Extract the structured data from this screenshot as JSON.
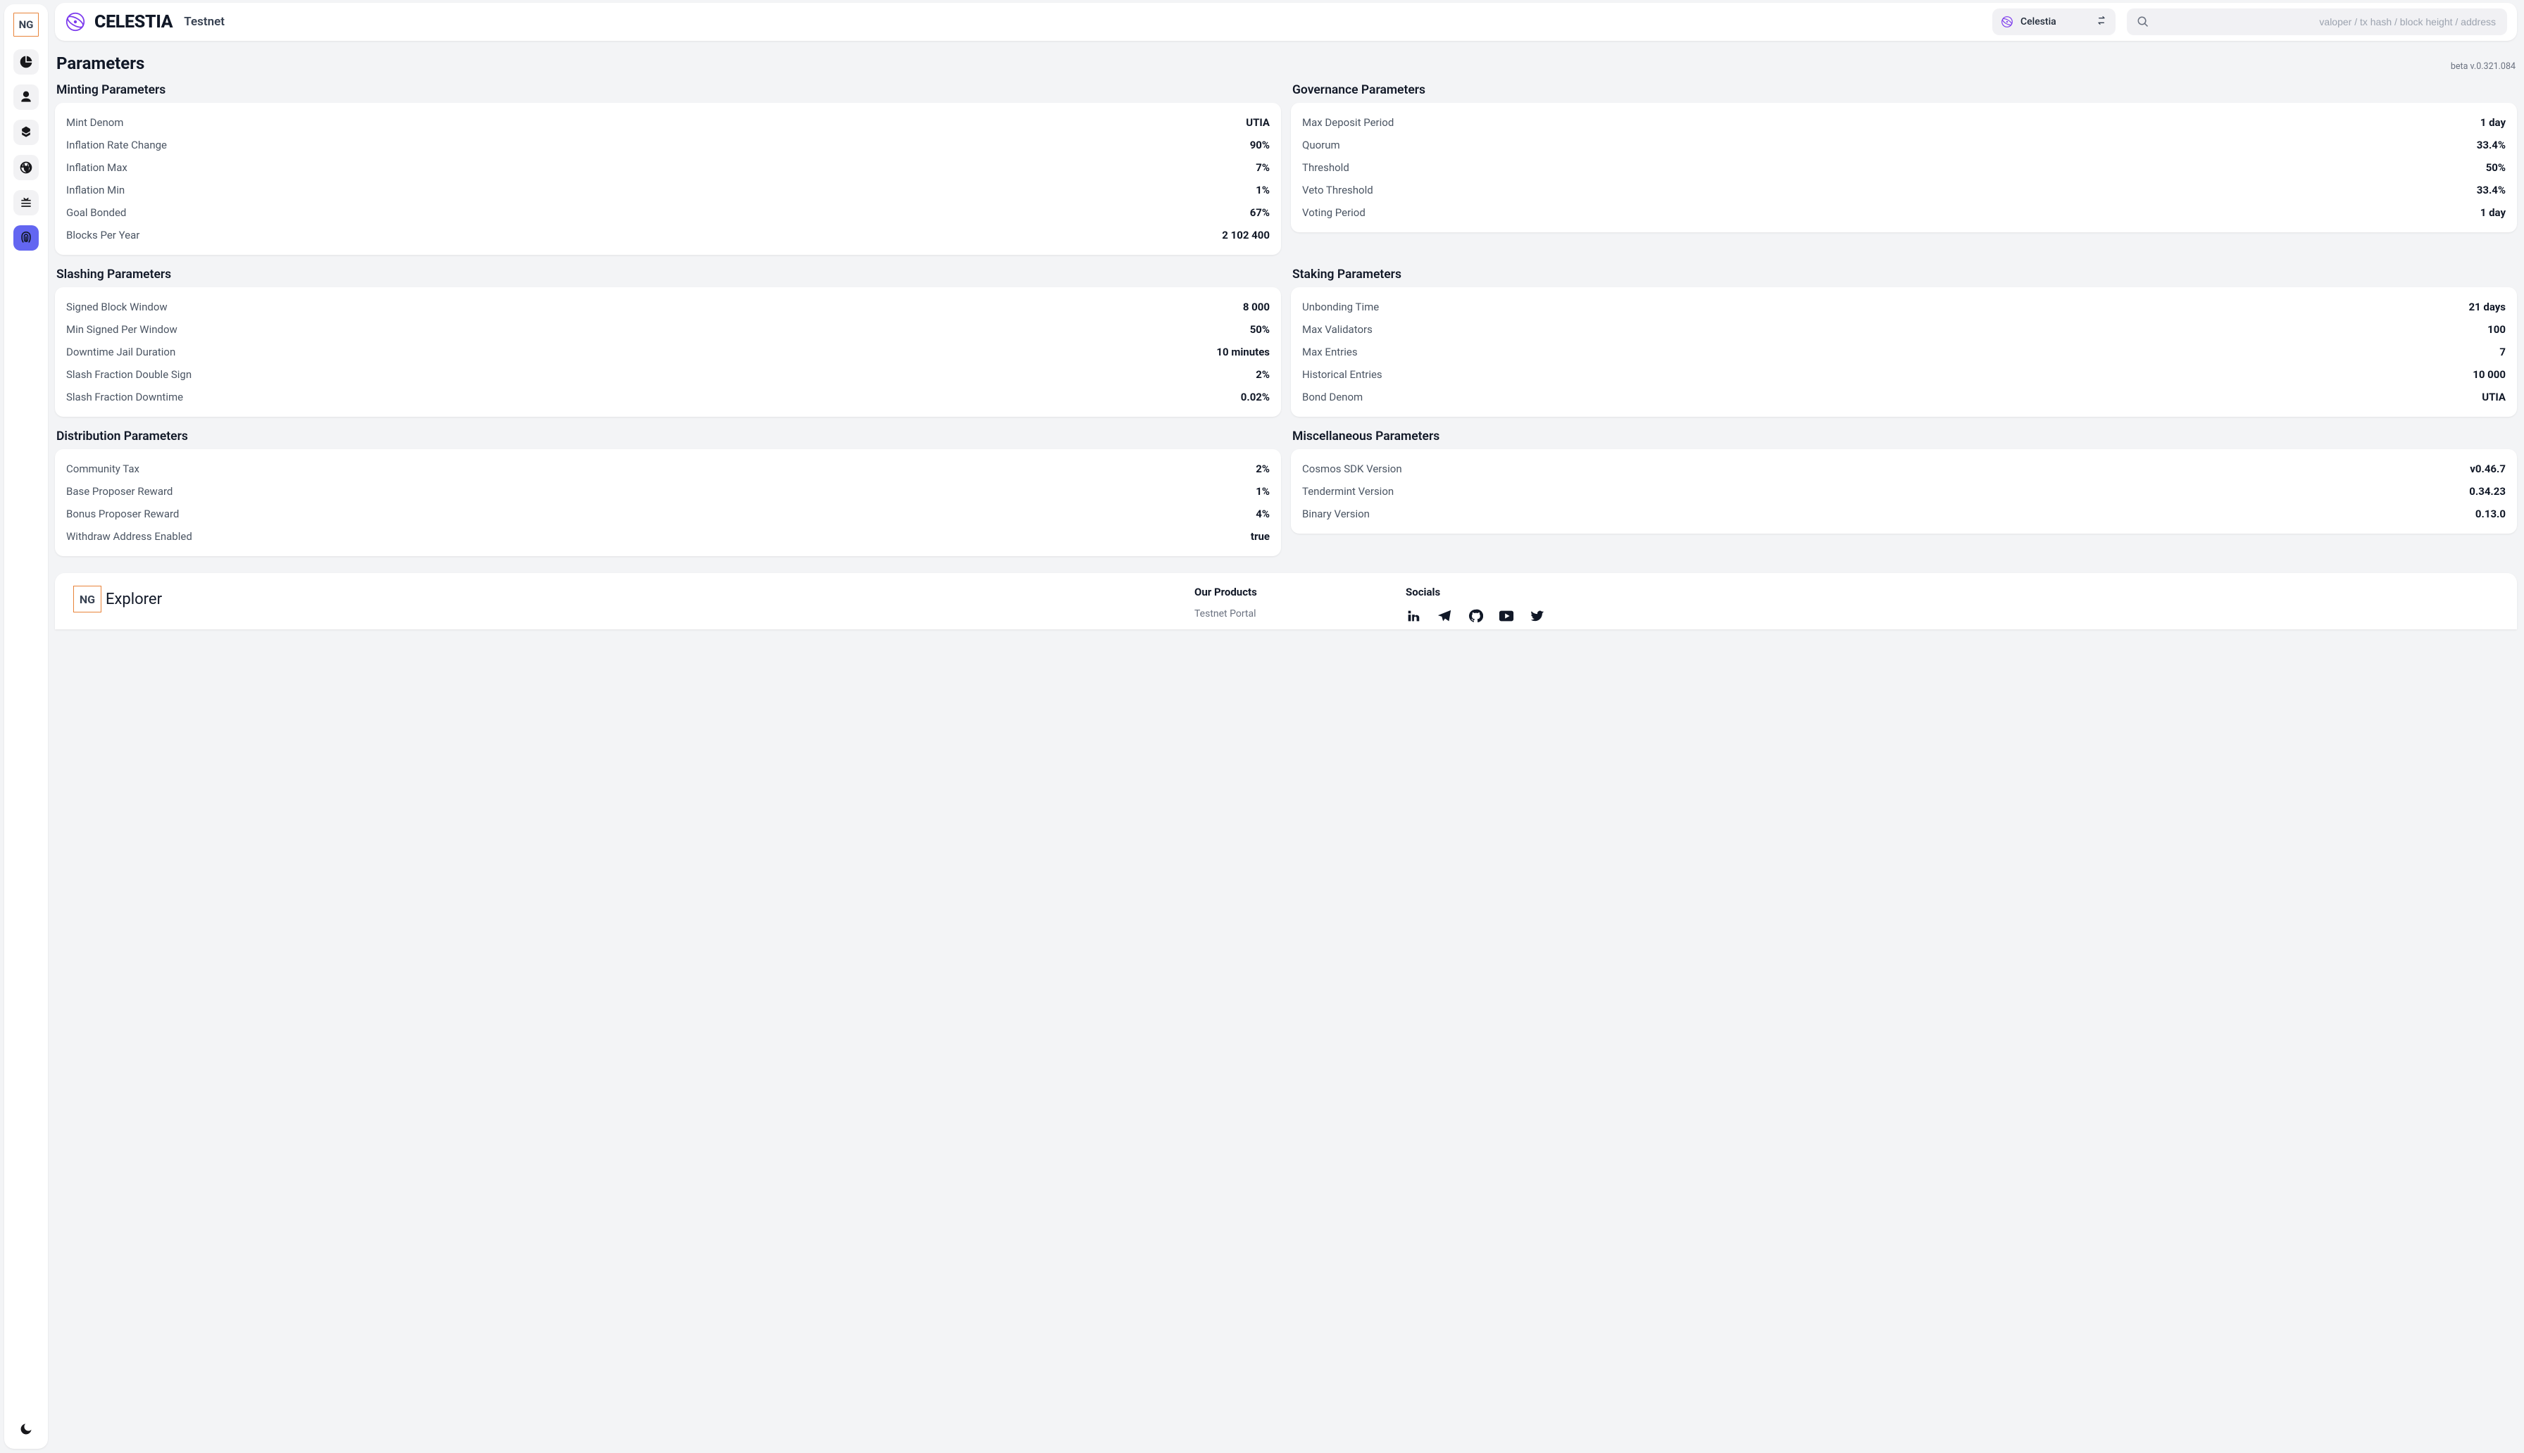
{
  "sidebar": {
    "logo_text": "NG",
    "items": [
      {
        "name": "dashboard",
        "icon": "pie"
      },
      {
        "name": "validators",
        "icon": "user"
      },
      {
        "name": "blocks",
        "icon": "cubes"
      },
      {
        "name": "network",
        "icon": "globe"
      },
      {
        "name": "proposals",
        "icon": "stack"
      },
      {
        "name": "parameters",
        "icon": "fingerprint",
        "active": true
      }
    ]
  },
  "topbar": {
    "brand_name": "CELESTIA",
    "network_label": "Testnet",
    "chain_selector_label": "Celestia",
    "search_placeholder": "valoper / tx hash / block height / address"
  },
  "page": {
    "title": "Parameters",
    "version_label": "beta v.0.321.084"
  },
  "sections": [
    {
      "title": "Minting Parameters",
      "rows": [
        {
          "label": "Mint Denom",
          "value": "UTIA"
        },
        {
          "label": "Inflation Rate Change",
          "value": "90%"
        },
        {
          "label": "Inflation Max",
          "value": "7%"
        },
        {
          "label": "Inflation Min",
          "value": "1%"
        },
        {
          "label": "Goal Bonded",
          "value": "67%"
        },
        {
          "label": "Blocks Per Year",
          "value": "2 102 400"
        }
      ]
    },
    {
      "title": "Governance Parameters",
      "rows": [
        {
          "label": "Max Deposit Period",
          "value": "1 day"
        },
        {
          "label": "Quorum",
          "value": "33.4%"
        },
        {
          "label": "Threshold",
          "value": "50%"
        },
        {
          "label": "Veto Threshold",
          "value": "33.4%"
        },
        {
          "label": "Voting Period",
          "value": "1 day"
        }
      ]
    },
    {
      "title": "Slashing Parameters",
      "rows": [
        {
          "label": "Signed Block Window",
          "value": "8 000"
        },
        {
          "label": "Min Signed Per Window",
          "value": "50%"
        },
        {
          "label": "Downtime Jail Duration",
          "value": "10 minutes"
        },
        {
          "label": "Slash Fraction Double Sign",
          "value": "2%"
        },
        {
          "label": "Slash Fraction Downtime",
          "value": "0.02%"
        }
      ]
    },
    {
      "title": "Staking Parameters",
      "rows": [
        {
          "label": "Unbonding Time",
          "value": "21 days"
        },
        {
          "label": "Max Validators",
          "value": "100"
        },
        {
          "label": "Max Entries",
          "value": "7"
        },
        {
          "label": "Historical Entries",
          "value": "10 000"
        },
        {
          "label": "Bond Denom",
          "value": "UTIA"
        }
      ]
    },
    {
      "title": "Distribution Parameters",
      "rows": [
        {
          "label": "Community Tax",
          "value": "2%"
        },
        {
          "label": "Base Proposer Reward",
          "value": "1%"
        },
        {
          "label": "Bonus Proposer Reward",
          "value": "4%"
        },
        {
          "label": "Withdraw Address Enabled",
          "value": "true"
        }
      ]
    },
    {
      "title": "Miscellaneous Parameters",
      "rows": [
        {
          "label": "Cosmos SDK Version",
          "value": "v0.46.7"
        },
        {
          "label": "Tendermint Version",
          "value": "0.34.23"
        },
        {
          "label": "Binary Version",
          "value": "0.13.0"
        }
      ]
    }
  ],
  "footer": {
    "brand_logo": "NG",
    "brand_name": "Explorer",
    "products_head": "Our Products",
    "products_link": "Testnet Portal",
    "socials_head": "Socials"
  },
  "colors": {
    "bg": "#f3f4f6",
    "card": "#ffffff",
    "text": "#111827",
    "text_muted": "#6b7280",
    "accent": "#6366f1",
    "logo_border": "#e8833a"
  }
}
